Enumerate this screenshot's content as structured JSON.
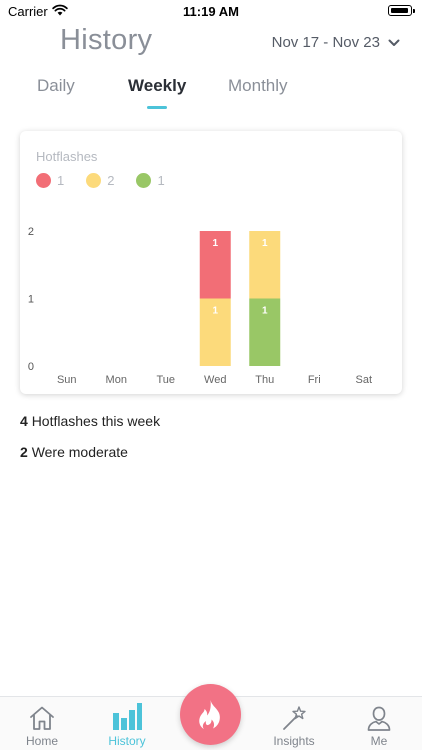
{
  "status_bar": {
    "carrier": "Carrier",
    "time": "11:19 AM"
  },
  "header": {
    "title": "History",
    "date_range": "Nov 17 - Nov 23"
  },
  "tabs": [
    {
      "label": "Daily",
      "active": false
    },
    {
      "label": "Weekly",
      "active": true
    },
    {
      "label": "Monthly",
      "active": false
    }
  ],
  "chart_data": {
    "type": "bar",
    "stacked": true,
    "title": "Hotflashes",
    "categories": [
      "Sun",
      "Mon",
      "Tue",
      "Wed",
      "Thu",
      "Fri",
      "Sat"
    ],
    "ylim": [
      0,
      2
    ],
    "yticks": [
      0,
      1,
      2
    ],
    "series": [
      {
        "color": "#f26e76",
        "values": [
          0,
          0,
          0,
          1,
          0,
          0,
          0
        ]
      },
      {
        "color": "#fcda7b",
        "values": [
          0,
          0,
          0,
          1,
          1,
          0,
          0
        ]
      },
      {
        "color": "#99c766",
        "values": [
          0,
          0,
          0,
          0,
          1,
          0,
          0
        ]
      }
    ],
    "stack_order": [
      [],
      [],
      [],
      [
        1,
        0
      ],
      [
        2,
        1
      ],
      [],
      []
    ],
    "legend": [
      {
        "color": "#f26e76",
        "value": "1"
      },
      {
        "color": "#fcda7b",
        "value": "2"
      },
      {
        "color": "#99c766",
        "value": "1"
      }
    ],
    "grid": false
  },
  "summary": {
    "line1_count": "4",
    "line1_text": "Hotflashes this week",
    "line2_count": "2",
    "line2_text": "Were moderate"
  },
  "tabbar": {
    "home": "Home",
    "history": "History",
    "insights": "Insights",
    "me": "Me",
    "active": "history"
  },
  "colors": {
    "accent": "#4cc3d9",
    "fab": "#f27285"
  }
}
